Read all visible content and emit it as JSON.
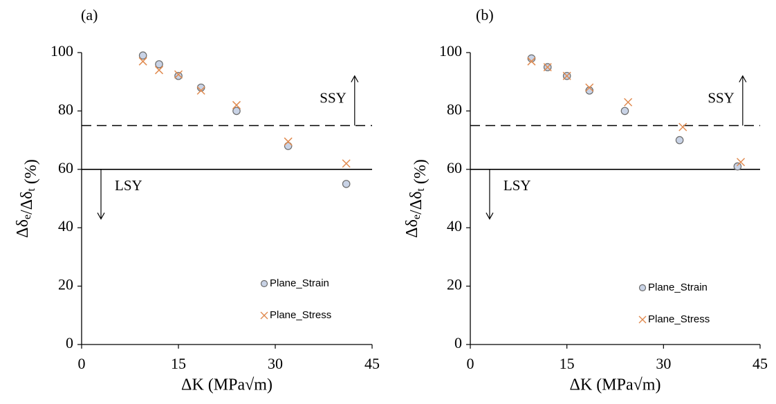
{
  "colors": {
    "strain_fill": "#c9d3e6",
    "strain_edge": "#6b6b6b",
    "stress_marker": "#e08a4f",
    "axis": "#000000"
  },
  "chart_data": [
    {
      "type": "scatter",
      "panel_label": "(a)",
      "xlabel": "ΔK (MPa√m)",
      "ylabel": "Δδe/Δδt (%)",
      "xlim": [
        0,
        45
      ],
      "ylim": [
        0,
        100
      ],
      "xticks": [
        0,
        15,
        30,
        45
      ],
      "yticks": [
        0,
        20,
        40,
        60,
        80,
        100
      ],
      "grid": false,
      "legend_position": "bottom-right",
      "reference_lines": [
        {
          "y": 75,
          "style": "dashed"
        },
        {
          "y": 60,
          "style": "solid"
        }
      ],
      "annotations": [
        {
          "text": "SSY",
          "arrow": "up",
          "x": 42.3,
          "y_from": 75,
          "y_to": 92
        },
        {
          "text": "LSY",
          "arrow": "down",
          "x": 3,
          "y_from": 60,
          "y_to": 43
        }
      ],
      "series": [
        {
          "name": "Plane_Strain",
          "marker": "circle",
          "x": [
            9.5,
            12,
            15,
            18.5,
            24,
            32,
            41
          ],
          "y": [
            99,
            96,
            92,
            88,
            80,
            68,
            55
          ]
        },
        {
          "name": "Plane_Stress",
          "marker": "x",
          "x": [
            9.5,
            12,
            15,
            18.5,
            24,
            32,
            41
          ],
          "y": [
            97,
            94,
            92.5,
            87,
            82,
            69.5,
            62
          ]
        }
      ]
    },
    {
      "type": "scatter",
      "panel_label": "(b)",
      "xlabel": "ΔK (MPa√m)",
      "ylabel": "Δδe/Δδt (%)",
      "xlim": [
        0,
        45
      ],
      "ylim": [
        0,
        100
      ],
      "xticks": [
        0,
        15,
        30,
        45
      ],
      "yticks": [
        0,
        20,
        40,
        60,
        80,
        100
      ],
      "grid": false,
      "legend_position": "bottom-right",
      "reference_lines": [
        {
          "y": 75,
          "style": "dashed"
        },
        {
          "y": 60,
          "style": "solid"
        }
      ],
      "annotations": [
        {
          "text": "SSY",
          "arrow": "up",
          "x": 42.3,
          "y_from": 75,
          "y_to": 92
        },
        {
          "text": "LSY",
          "arrow": "down",
          "x": 3,
          "y_from": 60,
          "y_to": 43
        }
      ],
      "series": [
        {
          "name": "Plane_Strain",
          "marker": "circle",
          "x": [
            9.5,
            12,
            15,
            18.5,
            24,
            32.5,
            41.5
          ],
          "y": [
            98,
            95,
            92,
            87,
            80,
            70,
            61
          ]
        },
        {
          "name": "Plane_Stress",
          "marker": "x",
          "x": [
            9.5,
            12,
            15,
            18.5,
            24.5,
            33,
            42
          ],
          "y": [
            97,
            95,
            92,
            88,
            83,
            74.5,
            62.5
          ]
        }
      ]
    }
  ]
}
